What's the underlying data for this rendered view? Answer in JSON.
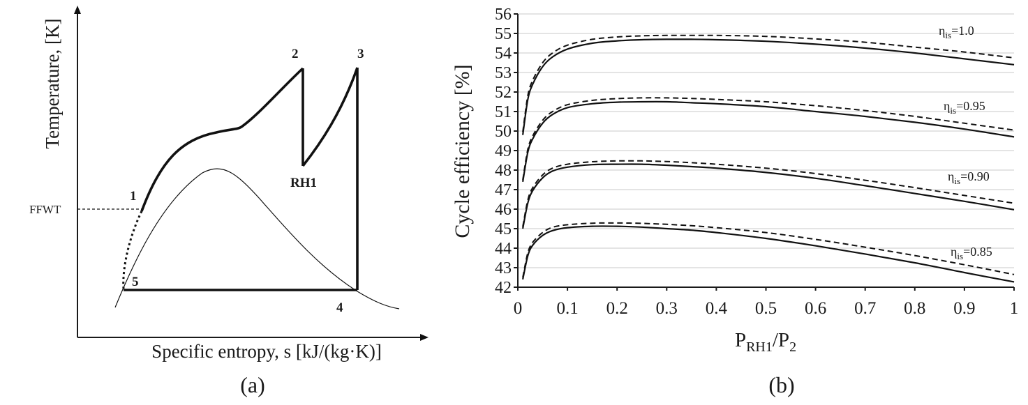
{
  "panel_a": {
    "x_axis_label": "Specific entropy, s [kJ/(kg·K)]",
    "y_axis_label": "Temperature, [K]",
    "ffwt_label": "FFWT",
    "point_labels": [
      "1",
      "2",
      "3",
      "4",
      "5",
      "RH1"
    ],
    "caption": "(a)"
  },
  "panel_b": {
    "caption": "(b)"
  },
  "chart_data": [
    {
      "type": "diagram",
      "title": "",
      "xlabel": "Specific entropy, s [kJ/(kg·K)]",
      "ylabel": "Temperature, [K]",
      "annotations": [
        "1",
        "2",
        "3",
        "4",
        "5",
        "RH1",
        "FFWT"
      ]
    },
    {
      "type": "line",
      "title": "",
      "xlabel": "P_RH1/P_2",
      "xlabel_main": "P",
      "xlabel_sub1": "RH1",
      "xlabel_mid": "/P",
      "xlabel_sub2": "2",
      "ylabel": "Cycle efficiency [%]",
      "xlim": [
        0,
        1
      ],
      "ylim": [
        42,
        56
      ],
      "x_ticks": [
        "0",
        "0.1",
        "0.2",
        "0.3",
        "0.4",
        "0.5",
        "0.6",
        "0.7",
        "0.8",
        "0.9",
        "1"
      ],
      "y_ticks": [
        "42",
        "43",
        "44",
        "45",
        "46",
        "47",
        "48",
        "49",
        "50",
        "51",
        "52",
        "53",
        "54",
        "55",
        "56"
      ],
      "grid": true,
      "x": [
        0.01,
        0.02,
        0.03,
        0.05,
        0.07,
        0.1,
        0.15,
        0.2,
        0.25,
        0.3,
        0.35,
        0.4,
        0.5,
        0.6,
        0.7,
        0.8,
        0.9,
        1.0
      ],
      "series": [
        {
          "group": "1.0",
          "style": "solid",
          "values": [
            49.8,
            51.6,
            52.4,
            53.3,
            53.8,
            54.2,
            54.5,
            54.62,
            54.68,
            54.7,
            54.7,
            54.68,
            54.6,
            54.45,
            54.25,
            54.0,
            53.7,
            53.4
          ]
        },
        {
          "group": "1.0",
          "style": "dashed",
          "values": [
            49.95,
            51.8,
            52.6,
            53.5,
            54.0,
            54.4,
            54.7,
            54.82,
            54.88,
            54.9,
            54.9,
            54.9,
            54.85,
            54.72,
            54.55,
            54.3,
            54.05,
            53.75
          ]
        },
        {
          "group": "0.95",
          "style": "solid",
          "values": [
            47.4,
            48.9,
            49.6,
            50.4,
            50.85,
            51.2,
            51.4,
            51.48,
            51.5,
            51.5,
            51.45,
            51.4,
            51.25,
            51.0,
            50.75,
            50.45,
            50.1,
            49.7
          ]
        },
        {
          "group": "0.95",
          "style": "dashed",
          "values": [
            47.5,
            49.05,
            49.75,
            50.55,
            51.0,
            51.35,
            51.57,
            51.66,
            51.7,
            51.7,
            51.67,
            51.62,
            51.5,
            51.3,
            51.05,
            50.75,
            50.4,
            50.05
          ]
        },
        {
          "group": "0.90",
          "style": "solid",
          "values": [
            45.0,
            46.3,
            46.95,
            47.6,
            47.95,
            48.15,
            48.28,
            48.3,
            48.3,
            48.25,
            48.18,
            48.1,
            47.88,
            47.58,
            47.2,
            46.8,
            46.4,
            45.97
          ]
        },
        {
          "group": "0.90",
          "style": "dashed",
          "values": [
            45.1,
            46.45,
            47.1,
            47.75,
            48.1,
            48.3,
            48.43,
            48.47,
            48.47,
            48.44,
            48.38,
            48.3,
            48.1,
            47.82,
            47.48,
            47.1,
            46.7,
            46.3
          ]
        },
        {
          "group": "0.85",
          "style": "solid",
          "values": [
            42.4,
            43.6,
            44.15,
            44.65,
            44.9,
            45.05,
            45.12,
            45.12,
            45.08,
            45.0,
            44.92,
            44.8,
            44.5,
            44.12,
            43.7,
            43.25,
            42.75,
            42.27
          ]
        },
        {
          "group": "0.85",
          "style": "dashed",
          "values": [
            42.5,
            43.75,
            44.3,
            44.8,
            45.07,
            45.2,
            45.28,
            45.29,
            45.27,
            45.22,
            45.15,
            45.05,
            44.8,
            44.45,
            44.05,
            43.62,
            43.15,
            42.65
          ]
        }
      ],
      "curve_labels": [
        {
          "eta": "η",
          "sub": "is",
          "value": "=1.0"
        },
        {
          "eta": "η",
          "sub": "is",
          "value": "=0.95"
        },
        {
          "eta": "η",
          "sub": "is",
          "value": "=0.90"
        },
        {
          "eta": "η",
          "sub": "is",
          "value": "=0.85"
        }
      ]
    }
  ]
}
